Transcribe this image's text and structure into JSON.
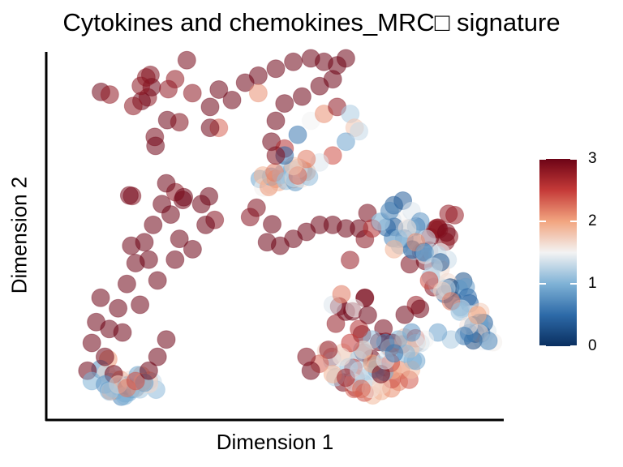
{
  "chart_data": {
    "type": "scatter",
    "title": "Cytokines and chemokines_MRC□ signature",
    "xlabel": "Dimension 1",
    "ylabel": "Dimension 2",
    "xlim": [
      0,
      100
    ],
    "ylim": [
      0,
      100
    ],
    "grid": false,
    "point_alpha": 0.55,
    "colorbar": {
      "title": "",
      "ticks": [
        0,
        1,
        2,
        3
      ],
      "range": [
        0,
        3
      ],
      "colormap": [
        "#0a2f60",
        "#2d6aa8",
        "#7fb2d6",
        "#f3f3f3",
        "#f2a580",
        "#c53a38",
        "#6d0316"
      ],
      "placement": "right"
    },
    "clusters": [
      {
        "name": "",
        "x": [
          10,
          31,
          18,
          72,
          64,
          80,
          89
        ],
        "y": [
          84,
          100,
          59,
          53,
          7,
          25,
          52
        ],
        "value": 2.9,
        "spread": 4
      },
      {
        "name": "",
        "x": [
          10,
          13,
          17,
          20
        ],
        "y": [
          14,
          5,
          5,
          7
        ],
        "value": 1.3,
        "spread": 3
      },
      {
        "name": "",
        "x": [
          46,
          51,
          56
        ],
        "y": [
          64,
          66,
          67
        ],
        "value": 1.6,
        "spread": 2
      },
      {
        "name": "",
        "x": [
          75,
          80,
          85,
          90,
          93,
          97
        ],
        "y": [
          55,
          49,
          43,
          37,
          28,
          21
        ],
        "value": 1.0,
        "spread": 3
      },
      {
        "name": "",
        "x": [
          64,
          68,
          72,
          76,
          80
        ],
        "y": [
          15,
          10,
          6,
          8,
          16
        ],
        "value": 1.7,
        "spread": 4
      }
    ],
    "points": [
      {
        "x": 7,
        "y": 10,
        "v": 3
      },
      {
        "x": 8,
        "y": 18,
        "v": 3
      },
      {
        "x": 9,
        "y": 24,
        "v": 3
      },
      {
        "x": 10,
        "y": 31,
        "v": 3
      },
      {
        "x": 12,
        "y": 22,
        "v": 3
      },
      {
        "x": 14,
        "y": 28,
        "v": 3
      },
      {
        "x": 16,
        "y": 35,
        "v": 3
      },
      {
        "x": 18,
        "y": 41,
        "v": 3
      },
      {
        "x": 20,
        "y": 47,
        "v": 3
      },
      {
        "x": 22,
        "y": 52,
        "v": 3
      },
      {
        "x": 24,
        "y": 58,
        "v": 3
      },
      {
        "x": 25,
        "y": 64,
        "v": 3
      },
      {
        "x": 26,
        "y": 55,
        "v": 3
      },
      {
        "x": 28,
        "y": 48,
        "v": 3
      },
      {
        "x": 27,
        "y": 42,
        "v": 3
      },
      {
        "x": 23,
        "y": 36,
        "v": 3
      },
      {
        "x": 19,
        "y": 29,
        "v": 3
      },
      {
        "x": 15,
        "y": 21,
        "v": 3
      },
      {
        "x": 11,
        "y": 14,
        "v": 3
      },
      {
        "x": 13,
        "y": 9,
        "v": 3
      },
      {
        "x": 8,
        "y": 7,
        "v": 1
      },
      {
        "x": 11,
        "y": 6,
        "v": 0.8
      },
      {
        "x": 14,
        "y": 6,
        "v": 1.7
      },
      {
        "x": 16,
        "y": 5,
        "v": 2.2
      },
      {
        "x": 18,
        "y": 7,
        "v": 2.4
      },
      {
        "x": 12,
        "y": 4,
        "v": 1.2
      },
      {
        "x": 21,
        "y": 10,
        "v": 3
      },
      {
        "x": 23,
        "y": 14,
        "v": 3
      },
      {
        "x": 25,
        "y": 19,
        "v": 3
      },
      {
        "x": 29,
        "y": 60,
        "v": 3
      },
      {
        "x": 33,
        "y": 58,
        "v": 3
      },
      {
        "x": 34,
        "y": 52,
        "v": 3
      },
      {
        "x": 31,
        "y": 45,
        "v": 3
      },
      {
        "x": 21,
        "y": 42,
        "v": 3
      },
      {
        "x": 17,
        "y": 46,
        "v": 3
      },
      {
        "x": 35,
        "y": 86,
        "v": 3
      },
      {
        "x": 37,
        "y": 91,
        "v": 3
      },
      {
        "x": 40,
        "y": 88,
        "v": 3
      },
      {
        "x": 43,
        "y": 93,
        "v": 3
      },
      {
        "x": 46,
        "y": 95,
        "v": 3
      },
      {
        "x": 50,
        "y": 97,
        "v": 3
      },
      {
        "x": 54,
        "y": 99,
        "v": 3
      },
      {
        "x": 58,
        "y": 100,
        "v": 3
      },
      {
        "x": 61,
        "y": 99,
        "v": 3
      },
      {
        "x": 64,
        "y": 98,
        "v": 3
      },
      {
        "x": 66,
        "y": 100,
        "v": 3
      },
      {
        "x": 63,
        "y": 94,
        "v": 3
      },
      {
        "x": 60,
        "y": 92,
        "v": 3
      },
      {
        "x": 56,
        "y": 89,
        "v": 3
      },
      {
        "x": 52,
        "y": 87,
        "v": 3
      },
      {
        "x": 50,
        "y": 82,
        "v": 3
      },
      {
        "x": 49,
        "y": 76,
        "v": 3
      },
      {
        "x": 52,
        "y": 74,
        "v": 2.6
      },
      {
        "x": 55,
        "y": 78,
        "v": 0.6
      },
      {
        "x": 58,
        "y": 82,
        "v": 1.5
      },
      {
        "x": 61,
        "y": 84,
        "v": 2.1
      },
      {
        "x": 64,
        "y": 86,
        "v": 2.8
      },
      {
        "x": 67,
        "y": 84,
        "v": 1.2
      },
      {
        "x": 68,
        "y": 80,
        "v": 1.8
      },
      {
        "x": 66,
        "y": 76,
        "v": 0.9
      },
      {
        "x": 63,
        "y": 72,
        "v": 2.4
      },
      {
        "x": 60,
        "y": 70,
        "v": 1.4
      },
      {
        "x": 57,
        "y": 71,
        "v": 2.2
      },
      {
        "x": 54,
        "y": 69,
        "v": 1.8
      },
      {
        "x": 52,
        "y": 72,
        "v": 0.5
      },
      {
        "x": 50,
        "y": 72,
        "v": 2.9
      },
      {
        "x": 37,
        "y": 80,
        "v": 2.3
      },
      {
        "x": 35,
        "y": 80,
        "v": 3
      },
      {
        "x": 46,
        "y": 90,
        "v": 2.1
      },
      {
        "x": 69,
        "y": 79,
        "v": 1.3
      },
      {
        "x": 48,
        "y": 47,
        "v": 3
      },
      {
        "x": 51,
        "y": 46,
        "v": 3
      },
      {
        "x": 54,
        "y": 48,
        "v": 3
      },
      {
        "x": 57,
        "y": 50,
        "v": 3
      },
      {
        "x": 60,
        "y": 52,
        "v": 3
      },
      {
        "x": 63,
        "y": 52,
        "v": 3
      },
      {
        "x": 66,
        "y": 51,
        "v": 3
      },
      {
        "x": 69,
        "y": 51,
        "v": 3
      },
      {
        "x": 72,
        "y": 51,
        "v": 2.6
      },
      {
        "x": 74,
        "y": 53,
        "v": 1.2
      },
      {
        "x": 76,
        "y": 56,
        "v": 0.7
      },
      {
        "x": 79,
        "y": 59,
        "v": 0.4
      },
      {
        "x": 81,
        "y": 56,
        "v": 1.4
      },
      {
        "x": 83,
        "y": 53,
        "v": 0.8
      },
      {
        "x": 80,
        "y": 51,
        "v": 1.6
      },
      {
        "x": 78,
        "y": 48,
        "v": 1.1
      },
      {
        "x": 77,
        "y": 45,
        "v": 1.9
      },
      {
        "x": 82,
        "y": 47,
        "v": 2.1
      },
      {
        "x": 84,
        "y": 44,
        "v": 0.9
      },
      {
        "x": 86,
        "y": 40,
        "v": 1.3
      },
      {
        "x": 85,
        "y": 36,
        "v": 2.4
      },
      {
        "x": 88,
        "y": 33,
        "v": 1.7
      },
      {
        "x": 90,
        "y": 30,
        "v": 2.2
      },
      {
        "x": 92,
        "y": 27,
        "v": 1.1
      },
      {
        "x": 94,
        "y": 23,
        "v": 1.6
      },
      {
        "x": 96,
        "y": 26,
        "v": 2.0
      },
      {
        "x": 93,
        "y": 20,
        "v": 0.6
      },
      {
        "x": 90,
        "y": 19,
        "v": 1.2
      },
      {
        "x": 87,
        "y": 21,
        "v": 0.9
      },
      {
        "x": 84,
        "y": 19,
        "v": 1.5
      },
      {
        "x": 81,
        "y": 21,
        "v": 0.8
      },
      {
        "x": 78,
        "y": 19,
        "v": 1.0
      },
      {
        "x": 75,
        "y": 18,
        "v": 0.7
      },
      {
        "x": 72,
        "y": 19,
        "v": 1.1
      },
      {
        "x": 70,
        "y": 16,
        "v": 1.7
      },
      {
        "x": 69,
        "y": 22,
        "v": 2.6
      },
      {
        "x": 66,
        "y": 27,
        "v": 3
      },
      {
        "x": 63,
        "y": 29,
        "v": 1.4
      },
      {
        "x": 65,
        "y": 32,
        "v": 2.2
      },
      {
        "x": 68,
        "y": 28,
        "v": 1.5
      },
      {
        "x": 71,
        "y": 26,
        "v": 3
      },
      {
        "x": 67,
        "y": 18,
        "v": 2.5
      },
      {
        "x": 65,
        "y": 14,
        "v": 1.6
      },
      {
        "x": 62,
        "y": 16,
        "v": 2.8
      },
      {
        "x": 60,
        "y": 12,
        "v": 2.3
      },
      {
        "x": 63,
        "y": 9,
        "v": 1.9
      },
      {
        "x": 66,
        "y": 8,
        "v": 2.7
      },
      {
        "x": 69,
        "y": 10,
        "v": 1.3
      },
      {
        "x": 72,
        "y": 12,
        "v": 2.0
      },
      {
        "x": 74,
        "y": 9,
        "v": 3
      },
      {
        "x": 75,
        "y": 13,
        "v": 1.4
      },
      {
        "x": 58,
        "y": 10,
        "v": 3
      },
      {
        "x": 57,
        "y": 14,
        "v": 2.9
      },
      {
        "x": 77,
        "y": 15,
        "v": 0.6
      }
    ]
  }
}
